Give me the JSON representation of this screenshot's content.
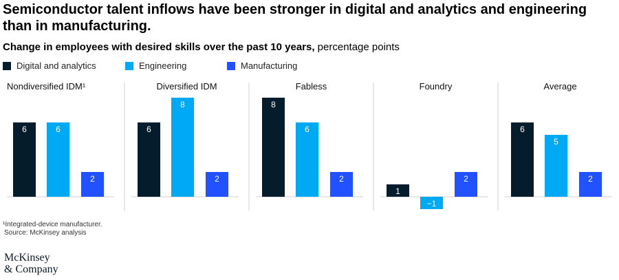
{
  "title": "Semiconductor talent inflows have been stronger in digital and analytics and engineering than in manufacturing.",
  "subtitle_bold": "Change in employees with desired skills over the past 10 years,",
  "subtitle_rest": " percentage points",
  "colors": {
    "digital": "#051c2c",
    "engineering": "#00a9f4",
    "manufacturing": "#2251ff",
    "divider": "#d0d0d0",
    "baseline": "#d0d0d0"
  },
  "footnote": "¹Integrated-device manufacturer.",
  "source": "Source: McKinsey analysis",
  "logo": {
    "line1": "McKinsey",
    "line2": "& Company"
  },
  "chart_data": {
    "type": "bar",
    "series": [
      {
        "name": "Digital and analytics",
        "color_key": "digital"
      },
      {
        "name": "Engineering",
        "color_key": "engineering"
      },
      {
        "name": "Manufacturing",
        "color_key": "manufacturing"
      }
    ],
    "groups": [
      {
        "label": "Nondiversified IDM¹",
        "values": [
          6,
          6,
          2
        ]
      },
      {
        "label": "Diversified IDM",
        "values": [
          6,
          8,
          2
        ]
      },
      {
        "label": "Fabless",
        "values": [
          8,
          6,
          2
        ]
      },
      {
        "label": "Foundry",
        "values": [
          1,
          -1,
          2
        ]
      },
      {
        "label": "Average",
        "values": [
          6,
          5,
          2
        ]
      }
    ]
  }
}
